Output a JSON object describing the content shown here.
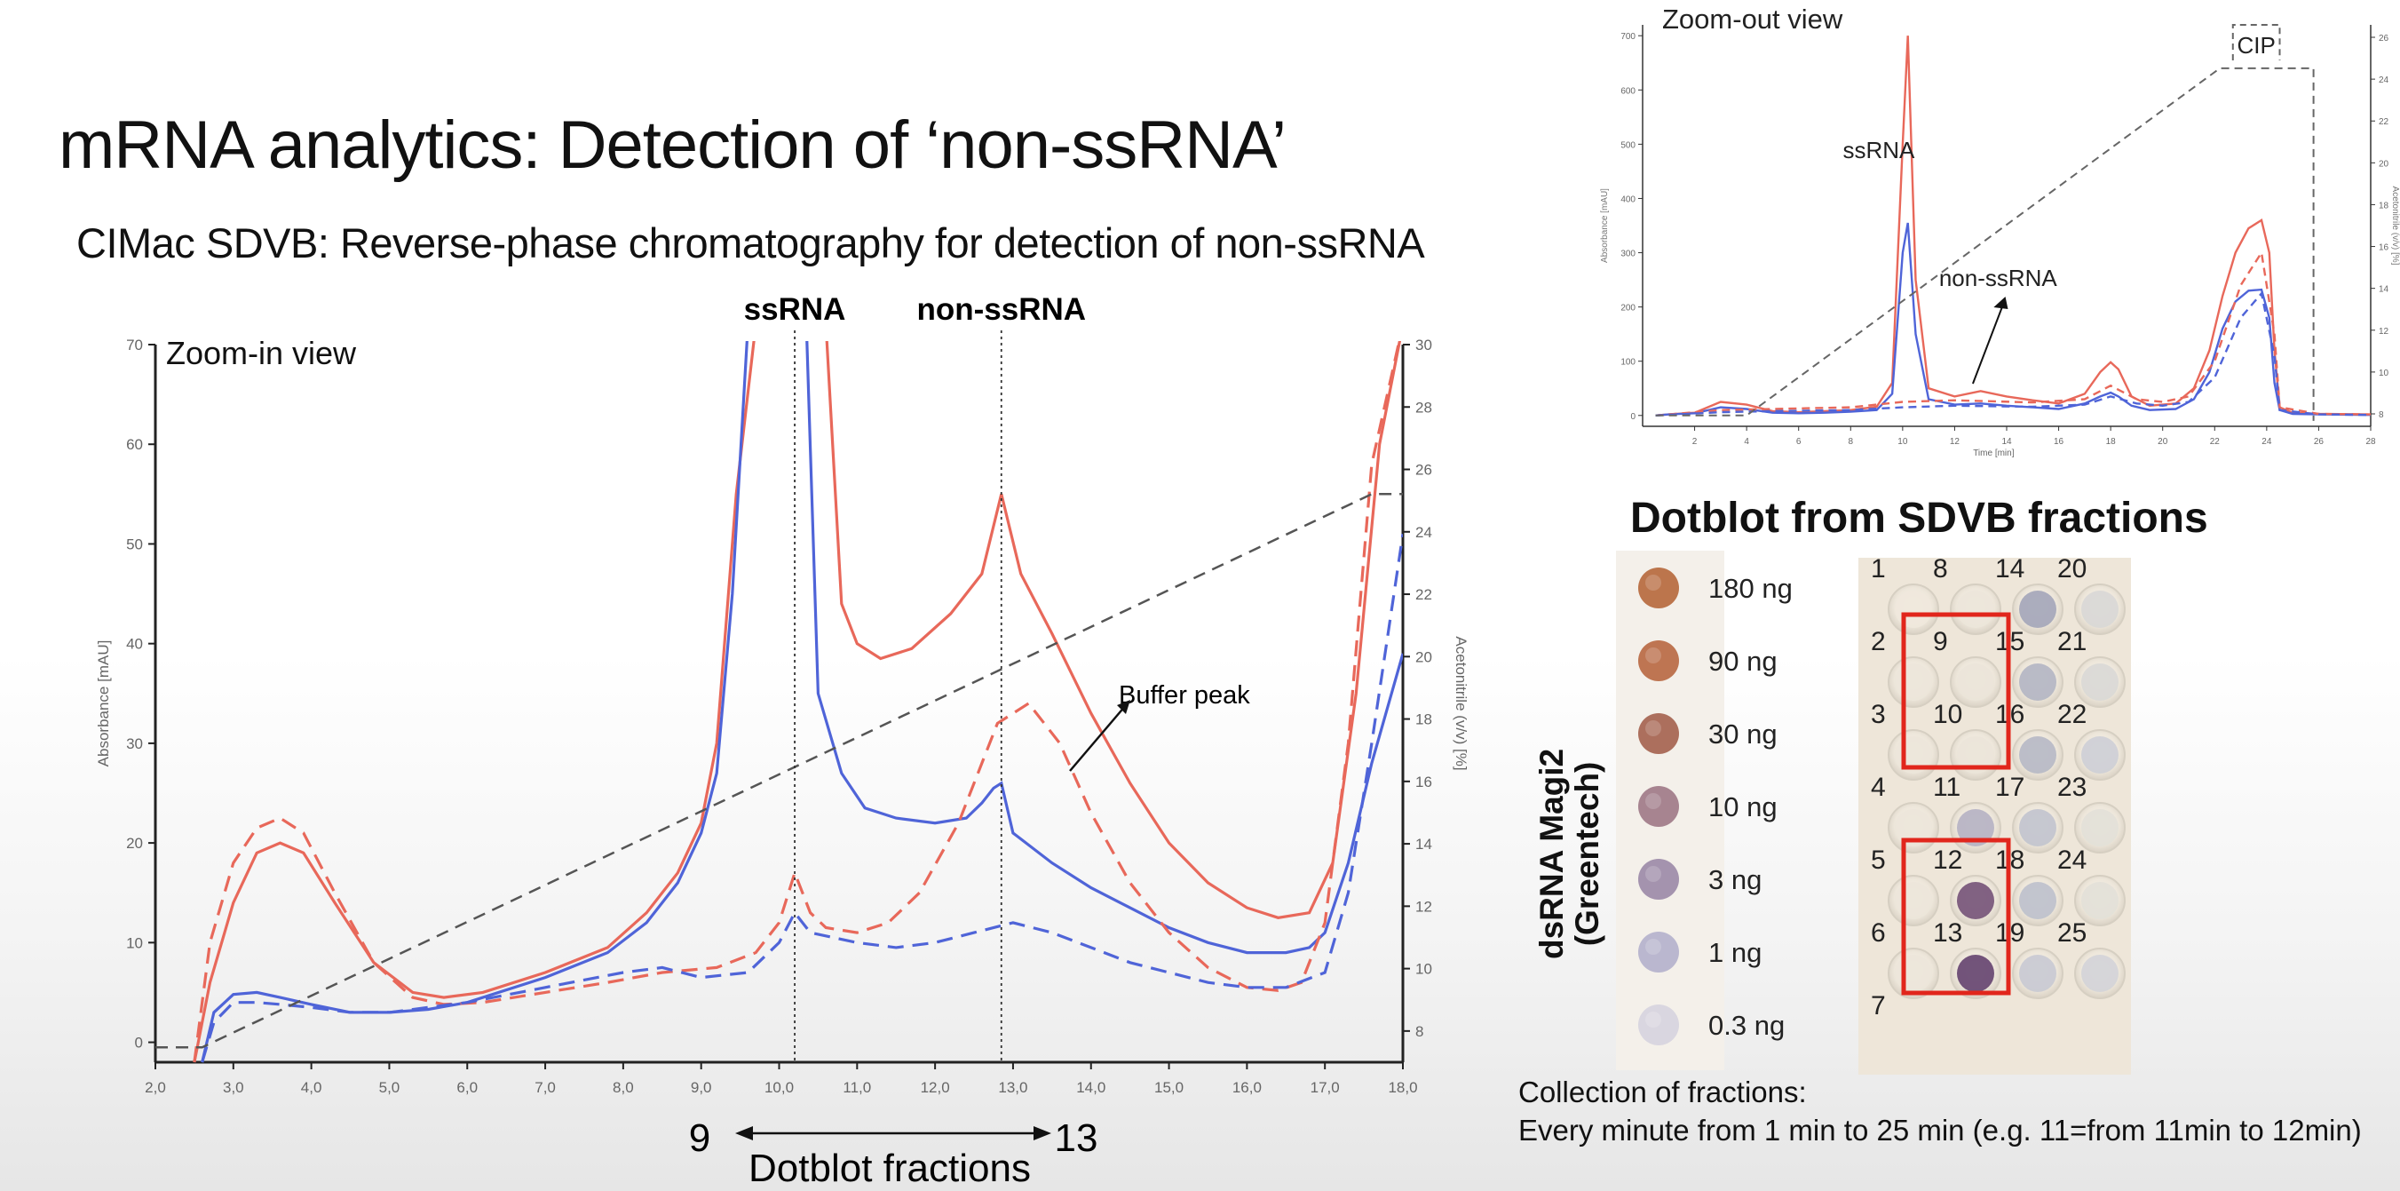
{
  "slide": {
    "title": "mRNA analytics:  Detection of ‘non-ssRNA’",
    "subtitle": "CIMac SDVB: Reverse-phase chromatography for detection of non-ssRNA"
  },
  "chart_data": [
    {
      "type": "line",
      "title": "Zoom-in view",
      "ylabel": "Absorbance [mAU]",
      "y2label": "Acetonitrile (v/v) [%]",
      "xlim": [
        2.0,
        18.0
      ],
      "ylim": [
        -2,
        70
      ],
      "y2lim": [
        7,
        30
      ],
      "x_ticks": [
        "2,0",
        "3,0",
        "4,0",
        "5,0",
        "6,0",
        "7,0",
        "8,0",
        "9,0",
        "10,0",
        "11,0",
        "12,0",
        "13,0",
        "14,0",
        "15,0",
        "16,0",
        "17,0",
        "18,0"
      ],
      "y_ticks": [
        "0",
        "10",
        "20",
        "30",
        "40",
        "50",
        "60",
        "70"
      ],
      "y2_ticks": [
        "8",
        "10",
        "12",
        "14",
        "16",
        "18",
        "20",
        "22",
        "24",
        "26",
        "28",
        "30"
      ],
      "annotations": {
        "ssrna": "ssRNA",
        "non_ssrna": "non-ssRNA",
        "buffer_peak": "Buffer peak",
        "fraction_start": "9",
        "fraction_end": "13",
        "fractions_label": "Dotblot fractions"
      },
      "vlines": [
        10.2,
        12.85
      ],
      "series": [
        {
          "color": "#e8685a",
          "style": "solid",
          "x": [
            2.5,
            2.7,
            3.0,
            3.3,
            3.6,
            3.9,
            4.3,
            4.8,
            5.3,
            5.7,
            6.2,
            7.0,
            7.8,
            8.3,
            8.7,
            9.0,
            9.2,
            9.45,
            9.7,
            10.6,
            10.8,
            11.0,
            11.3,
            11.7,
            12.2,
            12.6,
            12.85,
            13.1,
            13.5,
            14.0,
            14.5,
            15.0,
            15.5,
            16.0,
            16.4,
            16.8,
            17.1,
            17.4,
            17.7,
            18.0
          ],
          "y": [
            -2,
            6,
            14,
            19,
            20,
            19,
            14,
            8,
            5,
            4.5,
            5,
            7,
            9.5,
            13,
            17,
            22,
            30,
            55,
            72,
            72,
            44,
            40,
            38.5,
            39.5,
            43,
            47,
            55,
            47,
            41,
            33,
            26,
            20,
            16,
            13.5,
            12.5,
            13,
            18,
            35,
            60,
            72
          ]
        },
        {
          "color": "#4f64d8",
          "style": "solid",
          "x": [
            2.6,
            2.75,
            3.0,
            3.3,
            3.6,
            4.0,
            4.5,
            5.0,
            5.5,
            6.0,
            7.0,
            7.8,
            8.3,
            8.7,
            9.0,
            9.2,
            9.4,
            9.6,
            10.35,
            10.5,
            10.8,
            11.1,
            11.5,
            12.0,
            12.4,
            12.6,
            12.75,
            12.85,
            13.0,
            13.5,
            14.0,
            14.5,
            15.0,
            15.5,
            16.0,
            16.5,
            16.8,
            17.0,
            17.3,
            17.6,
            18.0
          ],
          "y": [
            -2,
            3,
            4.8,
            5,
            4.5,
            3.8,
            3,
            3,
            3.3,
            4,
            6.5,
            9,
            12,
            16,
            21,
            27,
            45,
            72,
            72,
            35,
            27,
            23.5,
            22.5,
            22,
            22.5,
            24,
            25.5,
            26,
            21,
            18,
            15.5,
            13.5,
            11.5,
            10,
            9,
            9,
            9.5,
            11,
            18,
            28,
            39
          ]
        },
        {
          "color": "#e8685a",
          "style": "dashed",
          "x": [
            2.5,
            2.7,
            3.0,
            3.3,
            3.6,
            3.9,
            4.3,
            4.8,
            5.3,
            5.7,
            6.2,
            7.0,
            7.8,
            8.5,
            9.2,
            9.7,
            10.0,
            10.2,
            10.4,
            10.6,
            11.0,
            11.4,
            11.8,
            12.3,
            12.8,
            13.2,
            13.6,
            14.0,
            14.5,
            15.0,
            15.5,
            16.0,
            16.4,
            16.7,
            17.0,
            17.3,
            17.6,
            18.0
          ],
          "y": [
            -2,
            10,
            18,
            21.5,
            22.5,
            21,
            15,
            8,
            4.5,
            3.8,
            4,
            5,
            6,
            7,
            7.5,
            9,
            12,
            17,
            13,
            11.5,
            11,
            12,
            15,
            22,
            32,
            34,
            30,
            23,
            16,
            11,
            7.5,
            5.5,
            5.2,
            6,
            12,
            30,
            58,
            72
          ]
        },
        {
          "color": "#4f64d8",
          "style": "dashed",
          "x": [
            2.6,
            2.75,
            3.0,
            3.3,
            3.6,
            4.0,
            4.5,
            5.0,
            6.0,
            7.0,
            8.0,
            8.5,
            9.0,
            9.6,
            10.0,
            10.2,
            10.4,
            10.7,
            11.0,
            11.5,
            12.0,
            12.5,
            13.0,
            13.5,
            14.0,
            14.5,
            15.0,
            15.5,
            16.0,
            16.5,
            17.0,
            17.3,
            17.6,
            18.0
          ],
          "y": [
            -2,
            2,
            4,
            4,
            3.8,
            3.5,
            3,
            3,
            4,
            5.5,
            7,
            7.5,
            6.5,
            7,
            10,
            13,
            11,
            10.5,
            10,
            9.5,
            10,
            11,
            12,
            11,
            9.5,
            8,
            7,
            6,
            5.5,
            5.5,
            7,
            15,
            30,
            51
          ]
        },
        {
          "color": "#555555",
          "style": "dashed",
          "name": "gradient",
          "x": [
            2.0,
            2.6,
            17.6,
            18.0
          ],
          "y": [
            -0.5,
            -0.5,
            55,
            55
          ]
        }
      ]
    },
    {
      "type": "line",
      "title": "Zoom-out view",
      "ylabel": "Absorbance [mAU]",
      "y2label": "Acetonitrile (v/v) [%]",
      "xlabel": "Time [min]",
      "xlim": [
        0,
        28
      ],
      "ylim": [
        -20,
        720
      ],
      "x_ticks": [
        "2",
        "4",
        "6",
        "8",
        "10",
        "12",
        "14",
        "16",
        "18",
        "20",
        "22",
        "24",
        "26",
        "28"
      ],
      "y_ticks": [
        "0",
        "100",
        "200",
        "300",
        "400",
        "500",
        "600",
        "700"
      ],
      "y2_ticks": [
        "8",
        "10",
        "12",
        "14",
        "16",
        "18",
        "20",
        "22",
        "24",
        "26"
      ],
      "annotations": {
        "ssrna": "ssRNA",
        "non_ssrna": "non-ssRNA",
        "cip": "CIP"
      },
      "series": [
        {
          "color": "#e8685a",
          "style": "solid",
          "x": [
            0.5,
            1,
            2,
            3,
            4,
            5,
            6,
            7,
            8,
            9,
            9.6,
            10,
            10.2,
            10.5,
            11,
            12,
            13,
            14,
            15,
            16,
            17,
            17.6,
            18,
            18.3,
            18.8,
            19.5,
            20.5,
            21.2,
            21.8,
            22.3,
            22.8,
            23.3,
            23.8,
            24.1,
            24.3,
            24.5,
            25,
            26,
            28
          ],
          "y": [
            0,
            2,
            5,
            25,
            20,
            8,
            6,
            8,
            10,
            16,
            60,
            500,
            700,
            250,
            50,
            35,
            45,
            35,
            28,
            22,
            40,
            80,
            98,
            85,
            35,
            18,
            22,
            50,
            120,
            220,
            300,
            345,
            360,
            300,
            120,
            15,
            5,
            3,
            2
          ]
        },
        {
          "color": "#4f64d8",
          "style": "solid",
          "x": [
            0.5,
            1,
            2,
            3,
            4,
            5,
            6,
            7,
            8,
            9,
            9.6,
            10,
            10.2,
            10.5,
            11,
            12,
            13,
            14,
            15,
            16,
            17,
            17.6,
            18,
            18.3,
            18.8,
            19.5,
            20.5,
            21.2,
            21.8,
            22.3,
            22.8,
            23.3,
            23.8,
            24.1,
            24.3,
            24.5,
            25,
            26,
            28
          ],
          "y": [
            0,
            2,
            4,
            15,
            12,
            5,
            4,
            5,
            7,
            10,
            40,
            300,
            355,
            150,
            30,
            20,
            22,
            18,
            15,
            12,
            22,
            35,
            42,
            35,
            18,
            10,
            12,
            30,
            80,
            160,
            210,
            230,
            232,
            180,
            60,
            10,
            3,
            2,
            1
          ]
        },
        {
          "color": "#e8685a",
          "style": "dashed",
          "x": [
            0.5,
            3,
            5,
            8,
            10,
            12,
            15,
            17,
            18,
            19,
            20,
            21,
            22,
            23,
            23.8,
            24.3,
            24.5,
            26,
            28
          ],
          "y": [
            0,
            10,
            12,
            15,
            25,
            28,
            24,
            30,
            55,
            30,
            25,
            35,
            100,
            240,
            300,
            150,
            15,
            3,
            2
          ]
        },
        {
          "color": "#4f64d8",
          "style": "dashed",
          "x": [
            0.5,
            3,
            5,
            8,
            10,
            12,
            15,
            17,
            18,
            19,
            20,
            21,
            22,
            23,
            23.8,
            24.3,
            24.5,
            26,
            28
          ],
          "y": [
            0,
            6,
            8,
            10,
            15,
            18,
            16,
            20,
            35,
            22,
            18,
            25,
            70,
            180,
            225,
            110,
            10,
            2,
            1
          ]
        },
        {
          "color": "#666666",
          "style": "dashed",
          "name": "gradient",
          "x": [
            0.5,
            4,
            22.2,
            22.2,
            23.8,
            23.8,
            25.8,
            25.8
          ],
          "y": [
            0,
            0,
            640,
            640,
            640,
            640,
            640,
            -10
          ]
        }
      ]
    }
  ],
  "dotblot": {
    "title": "Dotblot  from SDVB fractions",
    "side_label_line1": "dsRNA Magi2",
    "side_label_line2": "(Greentech)",
    "standards": [
      {
        "label": "180 ng",
        "color": "#b66a3e"
      },
      {
        "label": "90 ng",
        "color": "#b86a44"
      },
      {
        "label": "30 ng",
        "color": "#a56450"
      },
      {
        "label": "10 ng",
        "color": "#9f7b88"
      },
      {
        "label": "3 ng",
        "color": "#9c8ba8"
      },
      {
        "label": "1 ng",
        "color": "#b4b2cc"
      },
      {
        "label": "0.3 ng",
        "color": "#d6d4de"
      }
    ],
    "fraction_columns": [
      {
        "numbers": [
          "1",
          "2",
          "3",
          "4",
          "5",
          "6",
          "7"
        ],
        "colors": [
          "#efe8dc",
          "#ece6da",
          "#ece6da",
          "#ece6da",
          "#ece6da",
          "#ece6da",
          "#ece6da"
        ]
      },
      {
        "numbers": [
          "8",
          "9",
          "10",
          "11",
          "12",
          "13"
        ],
        "colors": [
          "#ece6da",
          "#ebe5d9",
          "#ebe5d9",
          "#b7b4c4",
          "#7a5a7c",
          "#6a4b74"
        ]
      },
      {
        "numbers": [
          "14",
          "15",
          "16",
          "17",
          "18",
          "19"
        ],
        "colors": [
          "#a7a9ba",
          "#b5b7c4",
          "#b8bac6",
          "#c3c5cf",
          "#bfc2cc",
          "#c9cad3"
        ]
      },
      {
        "numbers": [
          "20",
          "21",
          "22",
          "23",
          "24",
          "25"
        ],
        "colors": [
          "#d9d8d6",
          "#dad9d6",
          "#cfd0d6",
          "#e3e0d8",
          "#e3e0d8",
          "#d4d4d8"
        ]
      }
    ],
    "collection_line1": "Collection of fractions:",
    "collection_line2": "Every minute from 1 min to 25 min (e.g. 11=from 11min to 12min)"
  }
}
